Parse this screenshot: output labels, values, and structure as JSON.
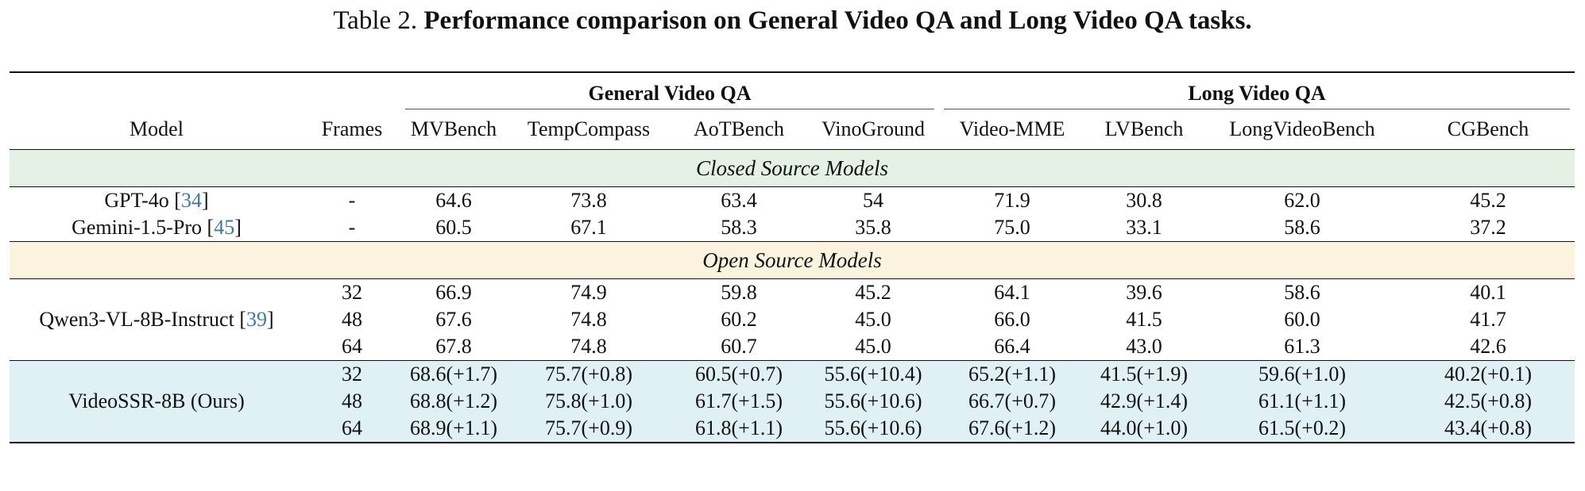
{
  "caption": {
    "prefix": "Table 2.",
    "title": "Performance comparison on General Video QA and Long Video QA tasks."
  },
  "groups": {
    "general": "General Video QA",
    "long": "Long Video QA"
  },
  "columns": [
    "Model",
    "Frames",
    "MVBench",
    "TempCompass",
    "AoTBench",
    "VinoGround",
    "Video-MME",
    "LVBench",
    "LongVideoBench",
    "CGBench"
  ],
  "sections": {
    "closed": "Closed Source Models",
    "open": "Open Source Models"
  },
  "closed_models": [
    {
      "name": "GPT-4o [",
      "ref": "34",
      "close": "]",
      "frames": "-",
      "values": [
        "64.6",
        "73.8",
        "63.4",
        "54",
        "71.9",
        "30.8",
        "62.0",
        "45.2"
      ]
    },
    {
      "name": "Gemini-1.5-Pro [",
      "ref": "45",
      "close": "]",
      "frames": "-",
      "values": [
        "60.5",
        "67.1",
        "58.3",
        "35.8",
        "75.0",
        "33.1",
        "58.6",
        "37.2"
      ]
    }
  ],
  "open_model": {
    "name": "Qwen3-VL-8B-Instruct [",
    "ref": "39",
    "close": "]",
    "rows": [
      {
        "frames": "32",
        "values": [
          "66.9",
          "74.9",
          "59.8",
          "45.2",
          "64.1",
          "39.6",
          "58.6",
          "40.1"
        ]
      },
      {
        "frames": "48",
        "values": [
          "67.6",
          "74.8",
          "60.2",
          "45.0",
          "66.0",
          "41.5",
          "60.0",
          "41.7"
        ]
      },
      {
        "frames": "64",
        "values": [
          "67.8",
          "74.8",
          "60.7",
          "45.0",
          "66.4",
          "43.0",
          "61.3",
          "42.6"
        ]
      }
    ]
  },
  "ours_model": {
    "name": "VideoSSR-8B (Ours)",
    "rows": [
      {
        "frames": "32",
        "values": [
          "68.6(+1.7)",
          "75.7(+0.8)",
          "60.5(+0.7)",
          "55.6(+10.4)",
          "65.2(+1.1)",
          "41.5(+1.9)",
          "59.6(+1.0)",
          "40.2(+0.1)"
        ]
      },
      {
        "frames": "48",
        "values": [
          "68.8(+1.2)",
          "75.8(+1.0)",
          "61.7(+1.5)",
          "55.6(+10.6)",
          "66.7(+0.7)",
          "42.9(+1.4)",
          "61.1(+1.1)",
          "42.5(+0.8)"
        ]
      },
      {
        "frames": "64",
        "values": [
          "68.9(+1.1)",
          "75.7(+0.9)",
          "61.8(+1.1)",
          "55.6(+10.6)",
          "67.6(+1.2)",
          "44.0(+1.0)",
          "61.5(+0.2)",
          "43.4(+0.8)"
        ]
      }
    ]
  }
}
